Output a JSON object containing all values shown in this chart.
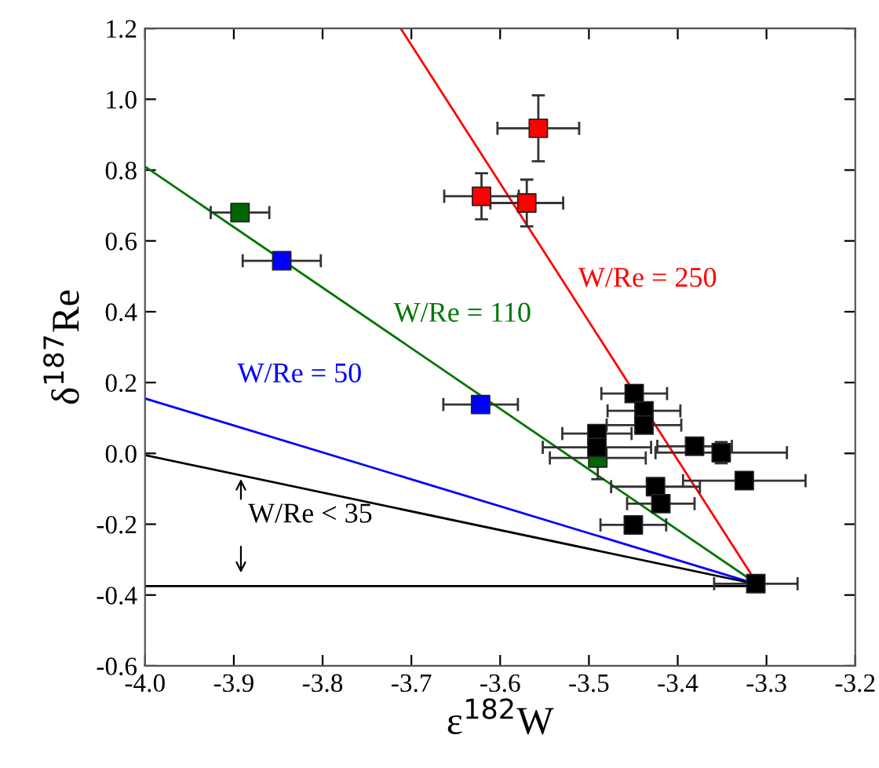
{
  "chart_data": {
    "type": "scatter",
    "xlabel": "ε$^{182}$W",
    "ylabel": "δ$^{187}$Re",
    "xlim": [
      -4.0,
      -3.2
    ],
    "ylim": [
      -0.6,
      1.2
    ],
    "xticks": [
      {
        "value": -4.0,
        "label": "-4.0"
      },
      -3.9,
      -3.8,
      -3.7,
      -3.6,
      -3.5,
      -3.4,
      -3.3,
      -3.2
    ],
    "yticks": [
      -0.6,
      -0.4,
      -0.2,
      {
        "value": 0.0,
        "label": "0.0"
      },
      0.2,
      0.4,
      0.6,
      0.8,
      {
        "value": 1.0,
        "label": "1.0"
      },
      1.2
    ],
    "grid": false,
    "series": [
      {
        "type": "line",
        "marker": "none",
        "name": "W/Re = 250",
        "color": "#ff0000",
        "x": [
          -3.712,
          -3.31
        ],
        "values": [
          1.2,
          -0.37
        ]
      },
      {
        "type": "line",
        "marker": "none",
        "name": "W/Re = 110",
        "color": "#007700",
        "x": [
          -4.0,
          -3.31
        ],
        "values": [
          0.81,
          -0.37
        ]
      },
      {
        "type": "line",
        "marker": "none",
        "name": "W/Re = 50",
        "color": "#0000ff",
        "x": [
          -4.0,
          -3.31
        ],
        "values": [
          0.155,
          -0.37
        ]
      },
      {
        "type": "line",
        "marker": "none",
        "name": "W/Re < 35",
        "color": "#000000",
        "x": [
          -4.0,
          -3.31
        ],
        "values": [
          -0.005,
          -0.37
        ]
      },
      {
        "type": "line",
        "marker": "none",
        "color": "#000000",
        "x": [
          -4.0,
          -3.31
        ],
        "values": [
          -0.375,
          -0.375
        ]
      },
      {
        "marker": "square",
        "color": "#ff0000",
        "x": [
          -3.557,
          -3.621,
          -3.57
        ],
        "values": [
          0.918,
          0.726,
          0.707
        ],
        "xerrors": [
          0.046,
          0.042,
          0.041
        ],
        "errors": [
          0.093,
          0.065,
          0.066
        ]
      },
      {
        "marker": "square",
        "color": "#006600",
        "x": [
          -3.893,
          -3.49
        ],
        "values": [
          0.68,
          -0.013
        ],
        "xerrors": [
          0.033,
          0.054
        ],
        "errors": [
          0.02,
          0.06
        ]
      },
      {
        "marker": "square",
        "color": "#0000ff",
        "x": [
          -3.846,
          -3.622
        ],
        "values": [
          0.544,
          0.138
        ],
        "xerrors": [
          0.044,
          0.042
        ],
        "errors": [
          0.02,
          0.02
        ]
      },
      {
        "marker": "square",
        "color": "#000000",
        "x": [
          -3.449,
          -3.438,
          -3.438,
          -3.491,
          -3.491,
          -3.381,
          -3.351,
          -3.325,
          -3.425,
          -3.419,
          -3.45,
          -3.312
        ],
        "values": [
          0.169,
          0.12,
          0.08,
          0.056,
          0.017,
          0.02,
          0.002,
          -0.077,
          -0.094,
          -0.142,
          -0.202,
          -0.368
        ],
        "xerrors": [
          0.037,
          0.041,
          0.042,
          0.039,
          0.061,
          0.042,
          0.074,
          0.069,
          0.05,
          0.038,
          0.037,
          0.047
        ],
        "errors": [
          0.02,
          0.02,
          0.02,
          0.02,
          0.02,
          0.02,
          0.03,
          0.02,
          0.02,
          0.02,
          0.02,
          0.02
        ]
      }
    ]
  }
}
